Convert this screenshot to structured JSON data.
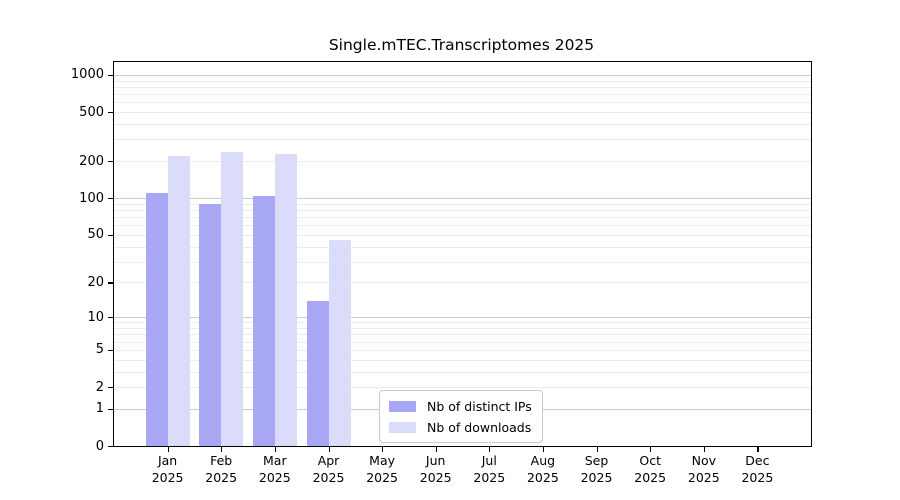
{
  "chart_data": {
    "type": "bar",
    "title": "Single.mTEC.Transcriptomes 2025",
    "year_label": "2025",
    "categories": [
      "Jan",
      "Feb",
      "Mar",
      "Apr",
      "May",
      "Jun",
      "Jul",
      "Aug",
      "Sep",
      "Oct",
      "Nov",
      "Dec"
    ],
    "series": [
      {
        "name": "Nb of distinct IPs",
        "color": "#a7a7f3",
        "values": [
          110,
          90,
          105,
          14,
          0,
          0,
          0,
          0,
          0,
          0,
          0,
          0
        ]
      },
      {
        "name": "Nb of downloads",
        "color": "#dbdbfa",
        "values": [
          220,
          238,
          228,
          45,
          0,
          0,
          0,
          0,
          0,
          0,
          0,
          0
        ]
      }
    ],
    "xlabel": "",
    "ylabel": "",
    "yscale": "log1p",
    "ylim": [
      0,
      1270
    ],
    "y_ticks": [
      0,
      1,
      2,
      5,
      10,
      20,
      50,
      100,
      200,
      500,
      1000
    ],
    "y_major_grid": [
      1,
      10,
      100,
      1000
    ],
    "y_minor_grid": [
      2,
      3,
      4,
      5,
      6,
      7,
      8,
      9,
      20,
      30,
      40,
      50,
      60,
      70,
      80,
      90,
      200,
      300,
      400,
      500,
      600,
      700,
      800,
      900
    ],
    "grid": "horizontal",
    "legend_position": "lower center",
    "colors": {
      "spine": "#000000",
      "major_grid": "#cccccc",
      "minor_grid": "#ececec",
      "background": "#ffffff",
      "text": "#000000"
    }
  }
}
